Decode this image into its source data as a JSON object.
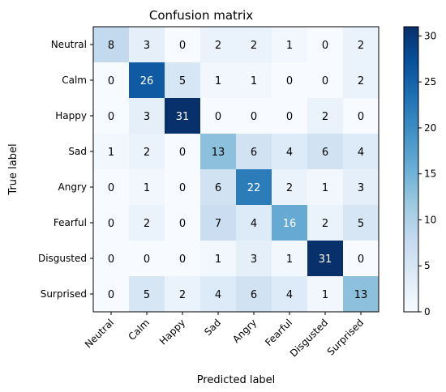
{
  "chart_data": {
    "type": "heatmap",
    "title": "Confusion matrix",
    "xlabel": "Predicted label",
    "ylabel": "True label",
    "x_categories": [
      "Neutral",
      "Calm",
      "Happy",
      "Sad",
      "Angry",
      "Fearful",
      "Disgusted",
      "Surprised"
    ],
    "y_categories": [
      "Neutral",
      "Calm",
      "Happy",
      "Sad",
      "Angry",
      "Fearful",
      "Disgusted",
      "Surprised"
    ],
    "matrix": [
      [
        8,
        3,
        0,
        2,
        2,
        1,
        0,
        2
      ],
      [
        0,
        26,
        5,
        1,
        1,
        0,
        0,
        2
      ],
      [
        0,
        3,
        31,
        0,
        0,
        0,
        2,
        0
      ],
      [
        1,
        2,
        0,
        13,
        6,
        4,
        6,
        4
      ],
      [
        0,
        1,
        0,
        6,
        22,
        2,
        1,
        3
      ],
      [
        0,
        2,
        0,
        7,
        4,
        16,
        2,
        5
      ],
      [
        0,
        0,
        0,
        1,
        3,
        1,
        31,
        0
      ],
      [
        0,
        5,
        2,
        4,
        6,
        4,
        1,
        13
      ]
    ],
    "colorbar": {
      "colormap": "Blues",
      "range": [
        0,
        31
      ],
      "ticks": [
        0,
        5,
        10,
        15,
        20,
        25,
        30
      ]
    },
    "grid": false,
    "x_tick_rotation": "45"
  }
}
